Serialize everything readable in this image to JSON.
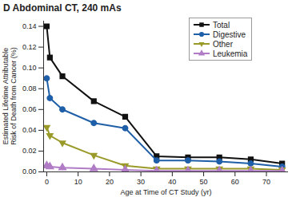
{
  "chart_data": {
    "type": "line",
    "title": "D Abdominal CT, 240 mAs",
    "x_label": "Age at Time of CT Study (yr)",
    "y_label": "Estimated Lifetime Attributable Risk of Death from Cancer (%)",
    "x": [
      0,
      1,
      5,
      15,
      25,
      35,
      45,
      55,
      65,
      75
    ],
    "series": [
      {
        "name": "Total",
        "color": "#111111",
        "marker": "square",
        "values": [
          0.14,
          0.11,
          0.092,
          0.068,
          0.053,
          0.015,
          0.014,
          0.014,
          0.012,
          0.008
        ]
      },
      {
        "name": "Digestive",
        "color": "#1f5fa8",
        "marker": "circle",
        "values": [
          0.09,
          0.071,
          0.06,
          0.047,
          0.042,
          0.011,
          0.011,
          0.01,
          0.008,
          0.005
        ]
      },
      {
        "name": "Other",
        "color": "#9a9a2a",
        "marker": "triangle-down",
        "values": [
          0.043,
          0.035,
          0.028,
          0.016,
          0.006,
          0.003,
          0.003,
          0.003,
          0.003,
          0.002
        ]
      },
      {
        "name": "Leukemia",
        "color": "#b07cc6",
        "marker": "triangle",
        "values": [
          0.006,
          0.005,
          0.004,
          0.003,
          0.002,
          0.001,
          0.001,
          0.001,
          0.001,
          0.001
        ]
      }
    ],
    "xlim": [
      -1,
      77
    ],
    "ylim": [
      0,
      0.145
    ],
    "xticks": [
      0,
      10,
      20,
      30,
      40,
      50,
      60,
      70
    ],
    "yticks": [
      {
        "value": 0,
        "label": "0.00"
      },
      {
        "value": 0.02,
        "label": "0.02"
      },
      {
        "value": 0.04,
        "label": "0.04"
      },
      {
        "value": 0.06,
        "label": "0.06"
      },
      {
        "value": 0.08,
        "label": "0.08"
      },
      {
        "value": 0.1,
        "label": "0.10"
      },
      {
        "value": 0.12,
        "label": "0.12"
      },
      {
        "value": 0.14,
        "label": "0.14"
      }
    ],
    "legend": "top-right",
    "grid": false
  }
}
